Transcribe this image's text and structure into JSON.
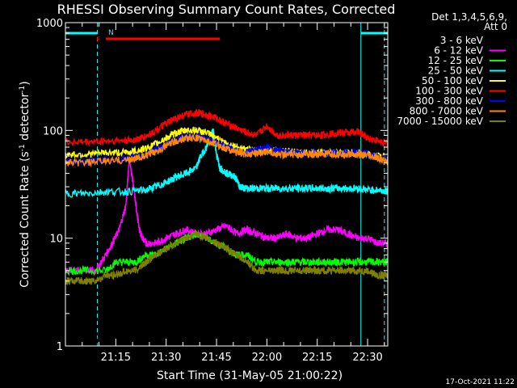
{
  "chart_data": {
    "type": "line",
    "title": "RHESSI Observing Summary Count Rates, Corrected",
    "xlabel": "Start Time (31-May-05 21:00:22)",
    "ylabel_parts": [
      "Corrected Count Rate (s",
      "-1",
      " detector",
      "-1",
      ")"
    ],
    "y_scale": "log",
    "ylim": [
      1,
      1000
    ],
    "xlim_minutes": [
      0,
      96
    ],
    "y_ticks": [
      "1",
      "10",
      "100",
      "1000"
    ],
    "x_ticks": [
      {
        "label": "21:15",
        "minute": 15
      },
      {
        "label": "21:30",
        "minute": 30
      },
      {
        "label": "21:45",
        "minute": 45
      },
      {
        "label": "22:00",
        "minute": 60
      },
      {
        "label": "22:15",
        "minute": 75
      },
      {
        "label": "22:30",
        "minute": 90
      }
    ],
    "legend": {
      "header": [
        "Det 1,3,4,5,6,9,",
        "Att 0"
      ],
      "placement": "right"
    },
    "series": [
      {
        "name": "3 - 6 keV",
        "color": "#000000",
        "x": [
          0,
          3,
          6,
          9,
          11,
          12,
          13,
          14,
          16,
          18,
          19,
          20,
          21,
          22,
          23,
          24,
          26,
          28,
          30,
          33,
          36,
          39,
          42,
          45,
          48,
          51,
          54,
          57,
          60,
          63,
          66,
          69,
          72,
          75,
          78,
          81,
          82,
          84,
          87,
          90,
          93,
          96
        ],
        "y": [
          1,
          1,
          1,
          1,
          1.5,
          1,
          1,
          1,
          3,
          15,
          50,
          20,
          10,
          7,
          6,
          5.5,
          6,
          7,
          6,
          6,
          7,
          7,
          8,
          8,
          7,
          6,
          6,
          5,
          4,
          4,
          5,
          4,
          3,
          4,
          6,
          8,
          2,
          2,
          5,
          6,
          5,
          5
        ]
      },
      {
        "name": "6 - 12 keV",
        "color": "#ff00ff",
        "x": [
          0,
          3,
          6,
          9,
          12,
          14,
          16,
          18,
          19,
          20,
          21,
          22,
          23,
          24,
          27,
          30,
          33,
          36,
          39,
          42,
          45,
          48,
          51,
          54,
          57,
          60,
          63,
          66,
          69,
          72,
          75,
          78,
          81,
          84,
          87,
          90,
          93,
          96
        ],
        "y": [
          5,
          5,
          5,
          5,
          7,
          9,
          12,
          20,
          55,
          35,
          20,
          12,
          10,
          9,
          9,
          10,
          11,
          12,
          11,
          11,
          12,
          13,
          11,
          12,
          11,
          10,
          10,
          11,
          10,
          10,
          11,
          12,
          12,
          11,
          10,
          10,
          9,
          9
        ]
      },
      {
        "name": "12 - 25 keV",
        "color": "#00ff00",
        "x": [
          0,
          6,
          12,
          15,
          18,
          21,
          24,
          27,
          30,
          33,
          36,
          39,
          42,
          45,
          48,
          51,
          54,
          57,
          60,
          63,
          66,
          69,
          72,
          75,
          78,
          81,
          84,
          87,
          90,
          93,
          96
        ],
        "y": [
          5,
          5,
          5,
          6,
          6,
          6,
          7,
          7,
          8,
          9,
          10,
          11,
          10,
          9,
          8,
          7,
          7,
          6,
          6,
          6,
          6,
          6,
          6,
          6,
          6,
          6,
          6,
          6,
          6,
          6,
          6
        ]
      },
      {
        "name": "25 - 50 keV",
        "color": "#00ffff",
        "x": [
          0,
          6,
          12,
          18,
          24,
          27,
          30,
          33,
          36,
          39,
          40,
          42,
          44,
          45,
          46,
          48,
          50,
          51,
          52,
          54,
          57,
          60,
          63,
          66,
          69,
          72,
          75,
          78,
          81,
          84,
          87,
          90,
          93,
          96
        ],
        "y": [
          26,
          26,
          27,
          27,
          28,
          30,
          33,
          37,
          40,
          45,
          55,
          70,
          100,
          60,
          45,
          40,
          38,
          35,
          30,
          29,
          29,
          29,
          29,
          29,
          29,
          29,
          29,
          29,
          29,
          29,
          29,
          28,
          28,
          27
        ]
      },
      {
        "name": "50 - 100 keV",
        "color": "#ffff00",
        "x": [
          0,
          6,
          12,
          18,
          21,
          24,
          27,
          30,
          33,
          36,
          39,
          42,
          45,
          48,
          51,
          54,
          57,
          60,
          63,
          66,
          69,
          72,
          75,
          78,
          81,
          84,
          87,
          90,
          93,
          96
        ],
        "y": [
          60,
          60,
          62,
          62,
          64,
          68,
          75,
          85,
          95,
          100,
          100,
          95,
          85,
          75,
          70,
          66,
          64,
          66,
          64,
          64,
          62,
          62,
          62,
          62,
          62,
          62,
          62,
          60,
          58,
          56
        ]
      },
      {
        "name": "100 - 300 keV",
        "color": "#ff0000",
        "x": [
          0,
          6,
          12,
          18,
          21,
          24,
          27,
          30,
          33,
          36,
          39,
          42,
          45,
          48,
          51,
          54,
          57,
          60,
          63,
          66,
          69,
          72,
          75,
          78,
          81,
          84,
          87,
          90,
          93,
          96
        ],
        "y": [
          78,
          78,
          80,
          80,
          82,
          88,
          100,
          115,
          130,
          140,
          145,
          140,
          130,
          115,
          105,
          95,
          90,
          110,
          90,
          90,
          90,
          90,
          90,
          92,
          95,
          95,
          98,
          85,
          80,
          75
        ]
      },
      {
        "name": "300 - 800 keV",
        "color": "#0000ff",
        "x": [
          0,
          6,
          12,
          18,
          21,
          24,
          27,
          30,
          33,
          36,
          39,
          42,
          45,
          48,
          51,
          54,
          57,
          60,
          63,
          66,
          69,
          72,
          75,
          78,
          81,
          84,
          87,
          90,
          93,
          96
        ],
        "y": [
          52,
          52,
          54,
          55,
          57,
          60,
          66,
          74,
          82,
          88,
          88,
          84,
          77,
          70,
          65,
          62,
          66,
          70,
          64,
          62,
          62,
          62,
          62,
          62,
          62,
          62,
          62,
          60,
          57,
          53
        ]
      },
      {
        "name": "800 - 7000 keV",
        "color": "#ff8800",
        "x": [
          0,
          6,
          12,
          18,
          21,
          24,
          27,
          30,
          33,
          36,
          39,
          42,
          45,
          48,
          51,
          54,
          57,
          60,
          63,
          66,
          69,
          72,
          75,
          78,
          81,
          84,
          87,
          90,
          93,
          96
        ],
        "y": [
          50,
          50,
          52,
          53,
          55,
          58,
          64,
          72,
          80,
          85,
          85,
          80,
          74,
          68,
          63,
          60,
          62,
          64,
          60,
          60,
          60,
          60,
          60,
          60,
          60,
          60,
          60,
          58,
          55,
          51
        ]
      },
      {
        "name": "7000 - 15000 keV",
        "color": "#808000",
        "x": [
          0,
          3,
          6,
          9,
          12,
          15,
          18,
          21,
          24,
          27,
          30,
          33,
          36,
          39,
          42,
          45,
          48,
          51,
          54,
          57,
          60,
          63,
          66,
          69,
          72,
          75,
          78,
          81,
          84,
          87,
          90,
          93,
          96
        ],
        "y": [
          4,
          4,
          4,
          4,
          4.5,
          4.5,
          5,
          5,
          6,
          7,
          8,
          9,
          10,
          11,
          10,
          9,
          8,
          7,
          6,
          5,
          5,
          5,
          5,
          5,
          5,
          5,
          5,
          5,
          5,
          5,
          5,
          4.5,
          4.5
        ]
      }
    ],
    "flags": [
      {
        "label": "N",
        "color": "#00ffff"
      },
      {
        "label": "F",
        "color": "#ff0000"
      }
    ],
    "flag_bars": [
      {
        "color": "#00ffff",
        "x": [
          0,
          9.5
        ]
      },
      {
        "color": "#00ffff",
        "x": [
          88,
          96
        ]
      },
      {
        "color": "#ff0000",
        "x": [
          12,
          46
        ]
      }
    ],
    "vlines": [
      {
        "minute": 0,
        "color": "#00ffff",
        "style": "solid"
      },
      {
        "minute": 9.5,
        "color": "#00ffff",
        "style": "dashed"
      },
      {
        "minute": 88,
        "color": "#00ffff",
        "style": "solid"
      },
      {
        "minute": 95,
        "color": "#00ffff",
        "style": "dashed"
      }
    ]
  },
  "timestamp": "17-Oct-2021 11:22"
}
